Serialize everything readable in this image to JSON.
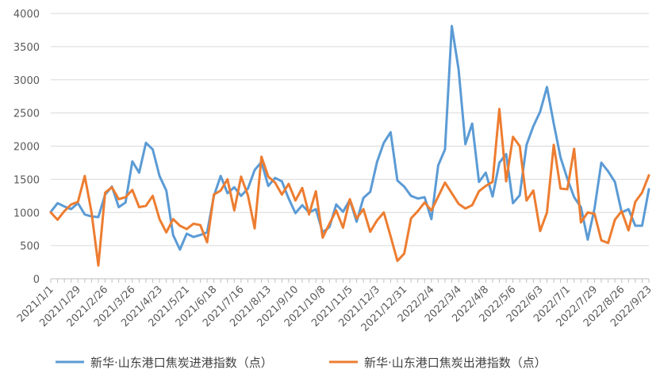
{
  "chart_data": {
    "type": "line",
    "ylim": [
      0,
      4000
    ],
    "yticks": [
      0,
      500,
      1000,
      1500,
      2000,
      2500,
      3000,
      3500,
      4000
    ],
    "x_tick_labels": [
      "2021/1/1",
      "2021/1/29",
      "2021/2/26",
      "2021/3/26",
      "2021/4/23",
      "2021/5/21",
      "2021/6/18",
      "2021/7/16",
      "2021/8/13",
      "2021/9/10",
      "2021/10/8",
      "2021/11/5",
      "2021/12/3",
      "2021/12/31",
      "2022/2/4",
      "2022/3/4",
      "2022/4/8",
      "2022/5/6",
      "2022/6/3",
      "2022/7/1",
      "2022/7/29",
      "2022/8/26",
      "2022/9/23"
    ],
    "grid": "horizontal",
    "legend_position": "bottom",
    "series": [
      {
        "name": "新华·山东港口焦炭进港指数（点）",
        "color": "#5B9BD5",
        "values": [
          1010,
          1140,
          1090,
          1050,
          1140,
          970,
          940,
          930,
          1270,
          1390,
          1080,
          1150,
          1770,
          1600,
          2050,
          1950,
          1550,
          1330,
          660,
          440,
          680,
          630,
          660,
          700,
          1250,
          1550,
          1290,
          1380,
          1250,
          1360,
          1640,
          1760,
          1400,
          1520,
          1470,
          1210,
          990,
          1110,
          1000,
          1050,
          700,
          780,
          1120,
          1010,
          1190,
          860,
          1220,
          1310,
          1760,
          2050,
          2210,
          1480,
          1390,
          1250,
          1210,
          1230,
          900,
          1710,
          1950,
          3810,
          3160,
          2030,
          2340,
          1460,
          1600,
          1240,
          1750,
          1880,
          1140,
          1260,
          2020,
          2300,
          2520,
          2890,
          2340,
          1830,
          1510,
          1230,
          1080,
          590,
          1060,
          1750,
          1620,
          1460,
          1000,
          1050,
          800,
          800,
          1350
        ]
      },
      {
        "name": "新华·山东港口焦炭出港指数（点）",
        "color": "#ED7D31",
        "values": [
          1000,
          890,
          1020,
          1120,
          1160,
          1550,
          1000,
          200,
          1300,
          1380,
          1200,
          1230,
          1340,
          1080,
          1100,
          1250,
          900,
          700,
          900,
          800,
          750,
          830,
          810,
          550,
          1270,
          1330,
          1500,
          1030,
          1540,
          1260,
          760,
          1840,
          1540,
          1450,
          1270,
          1430,
          1180,
          1370,
          970,
          1320,
          620,
          830,
          1030,
          770,
          1200,
          910,
          1050,
          710,
          880,
          1000,
          640,
          270,
          380,
          910,
          1020,
          1150,
          1030,
          1240,
          1450,
          1290,
          1130,
          1060,
          1110,
          1320,
          1400,
          1460,
          2560,
          1470,
          2140,
          2000,
          1180,
          1330,
          720,
          1000,
          2020,
          1360,
          1350,
          1960,
          850,
          1000,
          980,
          580,
          540,
          890,
          1020,
          730,
          1160,
          1300,
          1560
        ]
      }
    ]
  }
}
